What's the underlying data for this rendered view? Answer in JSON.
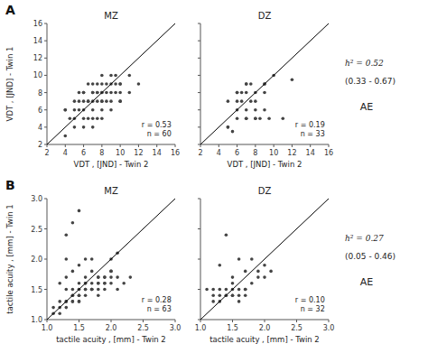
{
  "chart_data": [
    {
      "type": "scatter",
      "title": "MZ",
      "xlabel": "VDT , [JND] - Twin 2",
      "ylabel": "VDT , [JND] - Twin 1",
      "annotations": [
        "r = 0.53",
        "n = 60",
        "A"
      ],
      "xlim": [
        2,
        16
      ],
      "ylim": [
        2,
        16
      ],
      "xticks": [
        2,
        4,
        6,
        8,
        10,
        12,
        14,
        16
      ],
      "yticks": [
        2,
        4,
        6,
        8,
        10,
        12,
        14,
        16
      ],
      "series": [
        {
          "type": "scatter",
          "color": "#444444",
          "x": [
            4,
            4.5,
            5,
            5,
            5.5,
            5.5,
            6,
            6,
            6,
            6.5,
            6.5,
            6.5,
            7,
            7,
            7,
            7,
            7.5,
            7.5,
            7.5,
            7.5,
            8,
            8,
            8,
            8,
            8,
            8.5,
            8.5,
            9,
            9,
            9,
            9.5,
            9.5,
            10,
            10,
            10,
            4,
            5,
            6,
            7,
            8,
            9,
            10,
            11,
            12,
            6,
            7,
            8,
            4,
            5,
            6,
            7,
            8,
            9,
            10,
            5.5,
            6.5,
            7.5,
            8.5,
            9.5,
            11
          ],
          "values": [
            6,
            5,
            5,
            7,
            6,
            8,
            6,
            8,
            4,
            5,
            7,
            9,
            5,
            7,
            8,
            9,
            5,
            7,
            8,
            9,
            6,
            7,
            8,
            9,
            10,
            7,
            9,
            8,
            9,
            10,
            8,
            10,
            7,
            8,
            9,
            3,
            4,
            5,
            4,
            5,
            6,
            7,
            8,
            9,
            7,
            8,
            7,
            6,
            6,
            8,
            6,
            8,
            7,
            9,
            7,
            7,
            8,
            8,
            9,
            10
          ]
        },
        {
          "type": "line",
          "color": "#000000",
          "x": [
            2,
            16
          ],
          "values": [
            2,
            16
          ]
        }
      ]
    },
    {
      "type": "scatter",
      "title": "DZ",
      "xlabel": "VDT , [JND] - Twin 2",
      "annotations": [
        "r = 0.19",
        "n = 33",
        "h² = 0.52",
        "(0.33 - 0.67)",
        "AE"
      ],
      "xlim": [
        2,
        16
      ],
      "ylim": [
        2,
        16
      ],
      "xticks": [
        2,
        4,
        6,
        8,
        10,
        12,
        14,
        16
      ],
      "yticks": [
        2,
        4,
        6,
        8,
        10,
        12,
        14,
        16
      ],
      "tick_labels": "x",
      "series": [
        {
          "type": "scatter",
          "color": "#444444",
          "x": [
            5,
            5.5,
            6,
            6,
            6.5,
            6.5,
            7,
            7,
            7,
            7.5,
            7.5,
            8,
            8,
            8,
            8.5,
            9,
            9,
            9,
            9.5,
            5,
            6,
            7,
            8,
            9,
            10,
            11,
            12,
            6,
            7,
            8,
            5,
            6,
            7
          ],
          "values": [
            4,
            3.5,
            5,
            7,
            7,
            8,
            6,
            8,
            9,
            7,
            9,
            5,
            6,
            8,
            5,
            6,
            8,
            9,
            5,
            7,
            8,
            9,
            7,
            9,
            10,
            5,
            9.5,
            8,
            5,
            5,
            4,
            6,
            5
          ]
        },
        {
          "type": "line",
          "color": "#000000",
          "x": [
            2,
            16
          ],
          "values": [
            2,
            16
          ]
        }
      ]
    },
    {
      "type": "scatter",
      "title": "MZ",
      "xlabel": "tactile acuity , [mm] - Twin 2",
      "ylabel": "tactile acuity , [mm] - Twin 1",
      "annotations": [
        "r = 0.28",
        "n = 63",
        "B"
      ],
      "xlim": [
        1.0,
        3.0
      ],
      "ylim": [
        1.0,
        3.0
      ],
      "xticks": [
        {
          "value": 1.0,
          "label": "1.0"
        },
        1.5,
        {
          "value": 2.0,
          "label": "2.0"
        },
        2.5,
        {
          "value": 3.0,
          "label": "3.0"
        }
      ],
      "yticks": [
        {
          "value": 1.0,
          "label": "1.0"
        },
        1.5,
        {
          "value": 2.0,
          "label": "2.0"
        },
        2.5,
        {
          "value": 3.0,
          "label": "3.0"
        }
      ],
      "series": [
        {
          "type": "scatter",
          "color": "#444444",
          "x": [
            1.1,
            1.2,
            1.2,
            1.3,
            1.3,
            1.3,
            1.3,
            1.4,
            1.4,
            1.4,
            1.4,
            1.5,
            1.5,
            1.5,
            1.5,
            1.5,
            1.6,
            1.6,
            1.6,
            1.6,
            1.7,
            1.7,
            1.7,
            1.8,
            1.8,
            1.8,
            1.9,
            1.9,
            2.0,
            2.0,
            2.1,
            1.1,
            1.2,
            1.3,
            1.4,
            1.5,
            1.6,
            1.7,
            1.8,
            1.9,
            2.0,
            1.3,
            1.4,
            1.5,
            1.6,
            1.7,
            1.8,
            1.9,
            1.3,
            1.4,
            1.5,
            1.6,
            1.7,
            1.8,
            1.9,
            2.0,
            2.1,
            2.2,
            2.3,
            1.2,
            1.5,
            2.0,
            2.1
          ],
          "values": [
            1.2,
            1.3,
            1.6,
            1.3,
            1.5,
            1.7,
            2.0,
            1.3,
            1.4,
            1.5,
            1.8,
            1.3,
            1.4,
            1.5,
            1.6,
            1.9,
            1.4,
            1.5,
            1.6,
            2.0,
            1.5,
            1.6,
            1.8,
            1.5,
            1.6,
            1.7,
            1.5,
            1.7,
            1.6,
            2.0,
            1.7,
            1.1,
            1.2,
            1.2,
            1.3,
            1.4,
            1.5,
            1.5,
            1.6,
            1.6,
            1.7,
            2.4,
            2.6,
            2.8,
            1.7,
            2.0,
            1.7,
            1.6,
            1.3,
            1.4,
            1.5,
            1.6,
            1.5,
            1.4,
            1.7,
            1.8,
            1.5,
            1.6,
            1.7,
            1.1,
            1.3,
            1.8,
            2.1
          ]
        },
        {
          "type": "line",
          "color": "#000000",
          "x": [
            1.0,
            3.0
          ],
          "values": [
            1.0,
            3.0
          ]
        }
      ]
    },
    {
      "type": "scatter",
      "title": "DZ",
      "xlabel": "tactile acuity , [mm] - Twin 2",
      "annotations": [
        "r = 0.10",
        "n = 32",
        "h² = 0.27",
        "(0.05 - 0.46)",
        "AE"
      ],
      "xlim": [
        1.0,
        3.0
      ],
      "ylim": [
        1.0,
        3.0
      ],
      "xticks": [
        {
          "value": 1.0,
          "label": "1.0"
        },
        1.5,
        {
          "value": 2.0,
          "label": "2.0"
        },
        2.5,
        {
          "value": 3.0,
          "label": "3.0"
        }
      ],
      "yticks": [
        {
          "value": 1.0,
          "label": "1.0"
        },
        1.5,
        {
          "value": 2.0,
          "label": "2.0"
        },
        2.5,
        {
          "value": 3.0,
          "label": "3.0"
        }
      ],
      "tick_labels": "x",
      "series": [
        {
          "type": "scatter",
          "color": "#444444",
          "x": [
            1.1,
            1.2,
            1.2,
            1.3,
            1.3,
            1.3,
            1.4,
            1.4,
            1.5,
            1.5,
            1.5,
            1.6,
            1.6,
            1.7,
            1.7,
            1.8,
            1.9,
            2.0,
            1.2,
            1.3,
            1.4,
            1.5,
            1.6,
            1.7,
            1.8,
            1.9,
            2.0,
            2.1,
            1.4,
            1.5,
            1.6,
            1.7
          ],
          "values": [
            1.5,
            1.4,
            1.5,
            1.4,
            1.5,
            1.9,
            1.4,
            1.5,
            1.4,
            1.5,
            1.6,
            1.4,
            2.0,
            1.5,
            1.8,
            2.0,
            1.8,
            1.9,
            1.3,
            1.3,
            1.4,
            1.4,
            1.5,
            1.5,
            1.6,
            1.7,
            1.7,
            1.8,
            2.4,
            1.7,
            1.3,
            1.4
          ]
        },
        {
          "type": "line",
          "color": "#000000",
          "x": [
            1.0,
            3.0
          ],
          "values": [
            1.0,
            3.0
          ]
        }
      ]
    }
  ]
}
